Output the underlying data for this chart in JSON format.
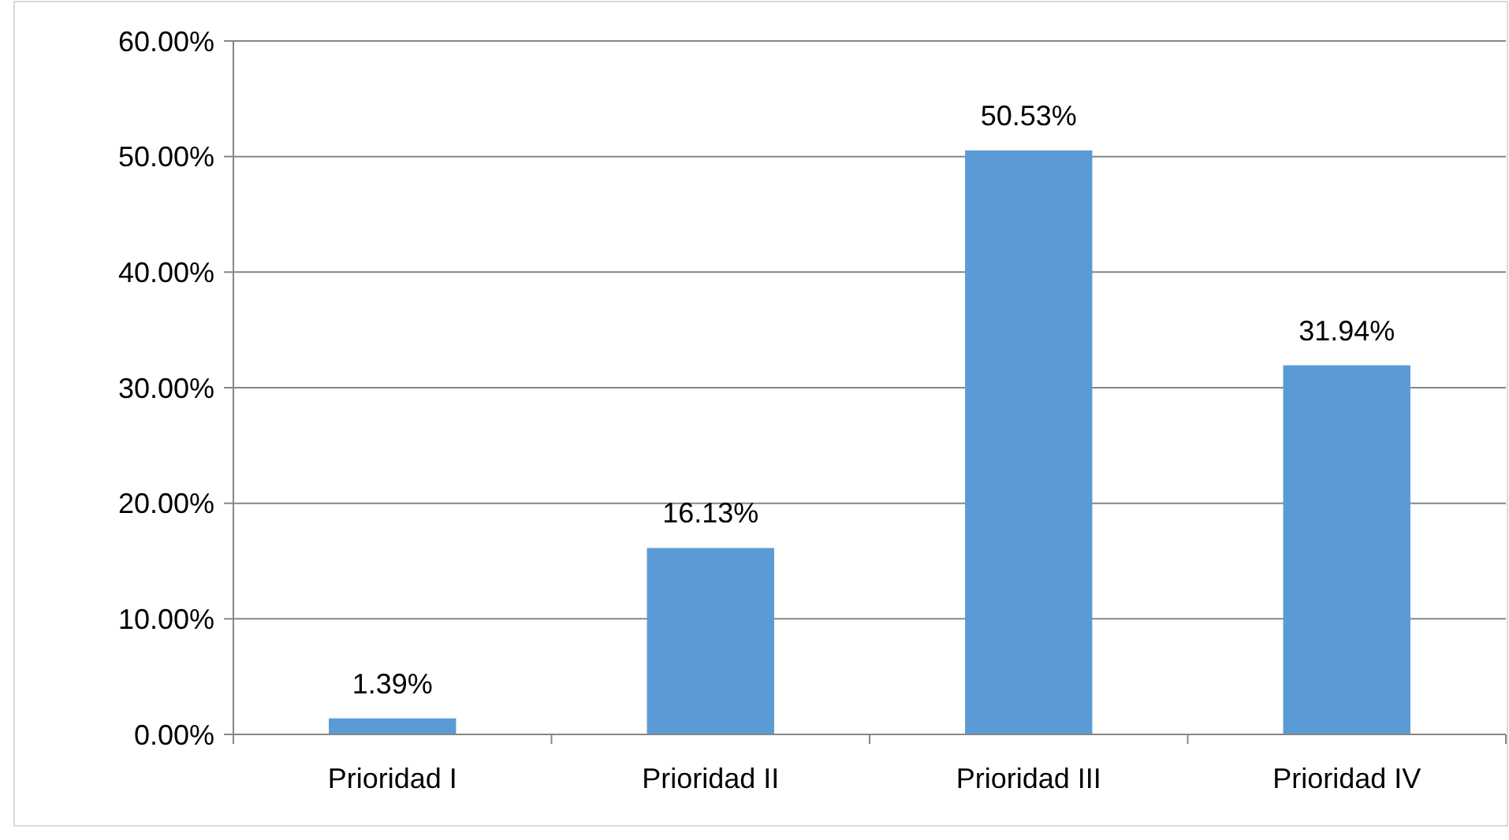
{
  "chart_data": {
    "type": "bar",
    "categories": [
      "Prioridad I",
      "Prioridad II",
      "Prioridad III",
      "Prioridad IV"
    ],
    "values": [
      1.39,
      16.13,
      50.53,
      31.94
    ],
    "color": "#5b9bd5",
    "value_labels": [
      "1.39%",
      "16.13%",
      "50.53%",
      "31.94%"
    ],
    "ylim": [
      0,
      60
    ],
    "yticks": [
      {
        "value": 0,
        "label": "0.00%"
      },
      {
        "value": 10,
        "label": "10.00%"
      },
      {
        "value": 20,
        "label": "20.00%"
      },
      {
        "value": 30,
        "label": "30.00%"
      },
      {
        "value": 40,
        "label": "40.00%"
      },
      {
        "value": 50,
        "label": "50.00%"
      },
      {
        "value": 60,
        "label": "60.00%"
      }
    ],
    "grid": "y"
  }
}
